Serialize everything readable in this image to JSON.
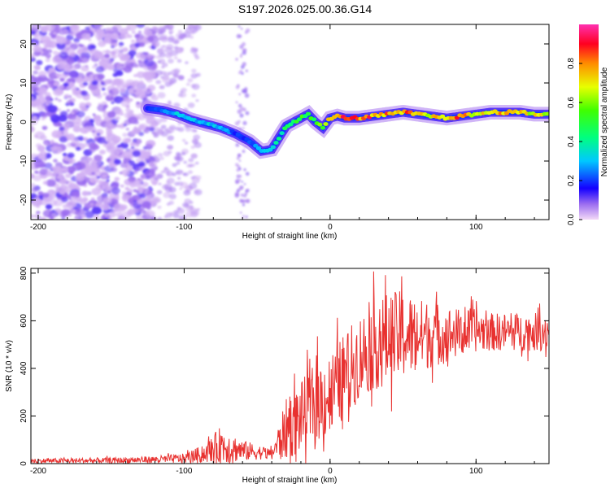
{
  "title": "S197.2026.025.00.36.G14",
  "chart_data": [
    {
      "type": "heatmap",
      "title": "S197.2026.025.00.36.G14",
      "xlabel": "Height of straight line (km)",
      "ylabel": "Frequency (Hz)",
      "xlim": [
        -205,
        150
      ],
      "ylim": [
        -25,
        25
      ],
      "x_ticks": [
        -200,
        -100,
        0,
        100
      ],
      "y_ticks": [
        -20,
        -10,
        0,
        10,
        20
      ],
      "colorbar": {
        "label": "Normalized spectral amplitude",
        "range": [
          0,
          1
        ],
        "ticks": [
          "0.0",
          "0.2",
          "0.4",
          "0.6",
          "0.8"
        ]
      },
      "ridge": {
        "description_x": [
          -125,
          -115,
          -105,
          -95,
          -85,
          -75,
          -65,
          -55,
          -47,
          -40,
          -35,
          -30,
          -20,
          -15,
          -10,
          -5,
          0,
          5,
          10,
          20,
          30,
          40,
          50,
          60,
          70,
          80,
          90,
          100,
          110,
          120,
          130,
          140,
          150
        ],
        "frequency_hz": [
          3.5,
          3.0,
          2.0,
          0.5,
          -0.5,
          -1.5,
          -3.0,
          -5.0,
          -7.5,
          -7.0,
          -4.0,
          -1.0,
          1.0,
          2.0,
          0.0,
          -1.5,
          1.0,
          1.5,
          1.0,
          1.0,
          1.5,
          2.0,
          2.5,
          2.0,
          1.5,
          1.0,
          1.5,
          2.0,
          2.5,
          2.5,
          2.5,
          2.0,
          2.0
        ],
        "amplitude": [
          0.2,
          0.25,
          0.3,
          0.3,
          0.3,
          0.3,
          0.2,
          0.2,
          0.3,
          0.35,
          0.4,
          0.45,
          0.5,
          0.5,
          0.55,
          0.6,
          0.7,
          0.8,
          0.85,
          0.85,
          0.8,
          0.75,
          0.8,
          0.75,
          0.7,
          0.75,
          0.8,
          0.65,
          0.75,
          0.8,
          0.75,
          0.65,
          0.7
        ]
      }
    },
    {
      "type": "line",
      "xlabel": "Height of straight line (km)",
      "ylabel": "SNR (10 * v/v)",
      "xlim": [
        -205,
        150
      ],
      "ylim": [
        0,
        820
      ],
      "x_ticks": [
        -200,
        -100,
        0,
        100
      ],
      "y_ticks": [
        0,
        200,
        400,
        600,
        800
      ],
      "color": "#e8312f",
      "envelope": {
        "x": [
          -205,
          -150,
          -120,
          -100,
          -85,
          -75,
          -60,
          -40,
          -30,
          -20,
          -10,
          0,
          10,
          20,
          30,
          40,
          50,
          60,
          70,
          80,
          90,
          100,
          110,
          120,
          130,
          140,
          150
        ],
        "base": [
          10,
          12,
          15,
          20,
          40,
          70,
          50,
          40,
          130,
          180,
          240,
          270,
          350,
          430,
          480,
          500,
          520,
          520,
          530,
          530,
          540,
          550,
          545,
          545,
          545,
          545,
          545
        ],
        "amp": [
          10,
          12,
          15,
          20,
          40,
          80,
          45,
          20,
          130,
          150,
          170,
          180,
          180,
          180,
          190,
          200,
          190,
          160,
          140,
          120,
          100,
          90,
          80,
          80,
          80,
          80,
          80
        ]
      }
    }
  ]
}
